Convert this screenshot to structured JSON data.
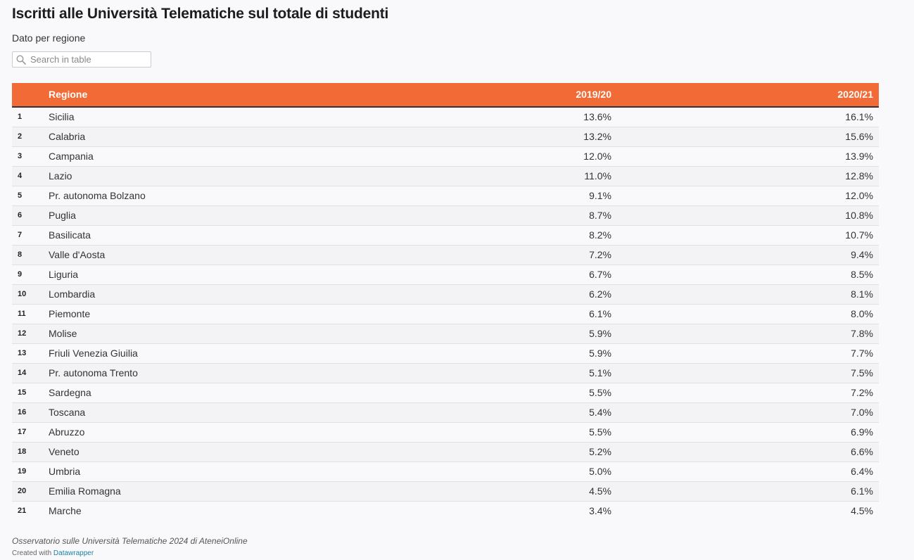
{
  "header": {
    "title": "Iscritti alle Università Telematiche sul totale di studenti",
    "subtitle": "Dato per regione"
  },
  "search": {
    "placeholder": "Search in table",
    "icon": "search-icon"
  },
  "colors": {
    "header_bg": "#f26a35",
    "header_text": "#ffffff",
    "link": "#1d81a2"
  },
  "table": {
    "columns": [
      "Regione",
      "2019/20",
      "2020/21"
    ],
    "rows": [
      {
        "rank": "1",
        "region": "Sicilia",
        "y2019": "13.6%",
        "y2020": "16.1%"
      },
      {
        "rank": "2",
        "region": "Calabria",
        "y2019": "13.2%",
        "y2020": "15.6%"
      },
      {
        "rank": "3",
        "region": "Campania",
        "y2019": "12.0%",
        "y2020": "13.9%"
      },
      {
        "rank": "4",
        "region": "Lazio",
        "y2019": "11.0%",
        "y2020": "12.8%"
      },
      {
        "rank": "5",
        "region": "Pr. autonoma Bolzano",
        "y2019": "9.1%",
        "y2020": "12.0%"
      },
      {
        "rank": "6",
        "region": "Puglia",
        "y2019": "8.7%",
        "y2020": "10.8%"
      },
      {
        "rank": "7",
        "region": "Basilicata",
        "y2019": "8.2%",
        "y2020": "10.7%"
      },
      {
        "rank": "8",
        "region": "Valle d'Aosta",
        "y2019": "7.2%",
        "y2020": "9.4%"
      },
      {
        "rank": "9",
        "region": "Liguria",
        "y2019": "6.7%",
        "y2020": "8.5%"
      },
      {
        "rank": "10",
        "region": "Lombardia",
        "y2019": "6.2%",
        "y2020": "8.1%"
      },
      {
        "rank": "11",
        "region": "Piemonte",
        "y2019": "6.1%",
        "y2020": "8.0%"
      },
      {
        "rank": "12",
        "region": "Molise",
        "y2019": "5.9%",
        "y2020": "7.8%"
      },
      {
        "rank": "13",
        "region": "Friuli Venezia Giuilia",
        "y2019": "5.9%",
        "y2020": "7.7%"
      },
      {
        "rank": "14",
        "region": "Pr. autonoma Trento",
        "y2019": "5.1%",
        "y2020": "7.5%"
      },
      {
        "rank": "15",
        "region": "Sardegna",
        "y2019": "5.5%",
        "y2020": "7.2%"
      },
      {
        "rank": "16",
        "region": "Toscana",
        "y2019": "5.4%",
        "y2020": "7.0%"
      },
      {
        "rank": "17",
        "region": "Abruzzo",
        "y2019": "5.5%",
        "y2020": "6.9%"
      },
      {
        "rank": "18",
        "region": "Veneto",
        "y2019": "5.2%",
        "y2020": "6.6%"
      },
      {
        "rank": "19",
        "region": "Umbria",
        "y2019": "5.0%",
        "y2020": "6.4%"
      },
      {
        "rank": "20",
        "region": "Emilia Romagna",
        "y2019": "4.5%",
        "y2020": "6.1%"
      },
      {
        "rank": "21",
        "region": "Marche",
        "y2019": "3.4%",
        "y2020": "4.5%"
      }
    ]
  },
  "footer": {
    "source": "Osservatorio sulle Università Telematiche 2024 di AteneiOnline",
    "credit_prefix": "Created with ",
    "credit_link": "Datawrapper"
  }
}
